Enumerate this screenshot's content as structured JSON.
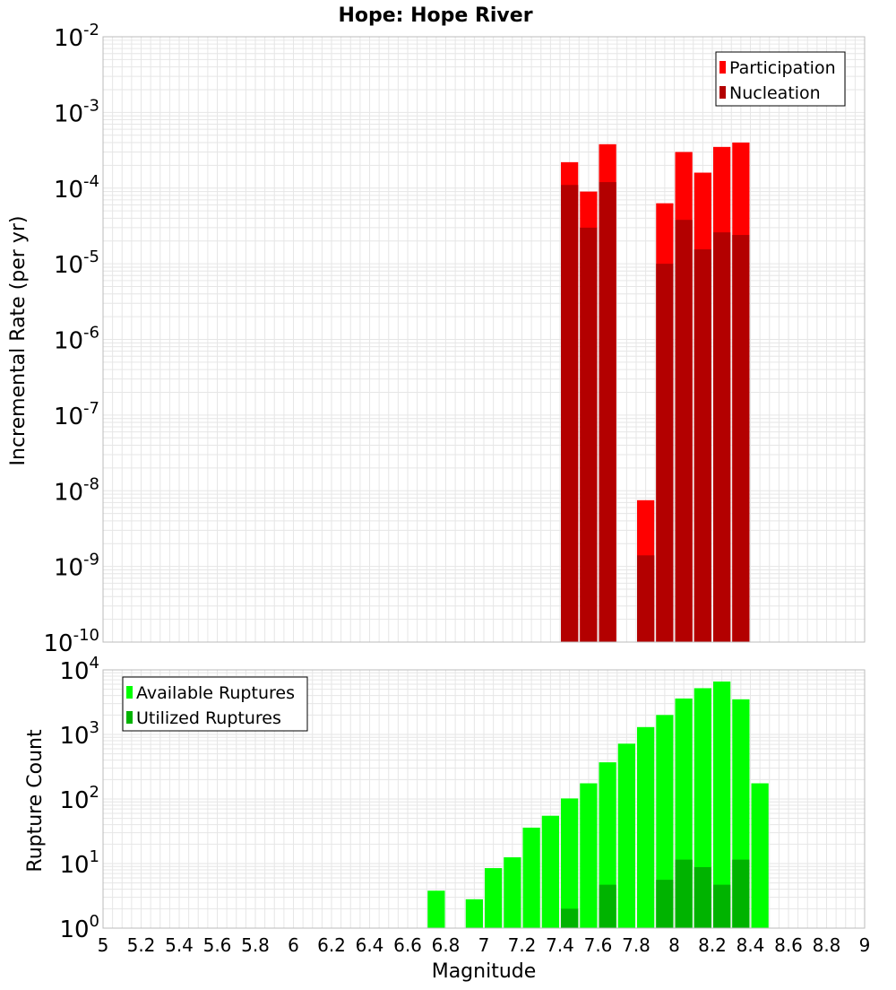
{
  "colors": {
    "participation": "#ff0000",
    "nucleation": "#b30000",
    "available": "#00ff00",
    "utilized": "#00b300",
    "grid": "#e6e6e6",
    "frame": "#bbbbbb",
    "background": "#ffffff"
  },
  "chart_data": [
    {
      "type": "bar",
      "title": "Hope: Hope River",
      "ylabel": "Incremental Rate (per yr)",
      "xlabel": "",
      "yscale": "log",
      "xlim": [
        5,
        9
      ],
      "ylim_exp": [
        -10,
        -2
      ],
      "grid": true,
      "legend_position": "top-right",
      "bar_width": 0.1,
      "series": [
        {
          "name": "Participation",
          "color": "#ff0000",
          "points": [
            {
              "x": 7.45,
              "y": 0.00022
            },
            {
              "x": 7.55,
              "y": 9e-05
            },
            {
              "x": 7.65,
              "y": 0.00038
            },
            {
              "x": 7.85,
              "y": 7.5e-09
            },
            {
              "x": 7.95,
              "y": 6.3e-05
            },
            {
              "x": 8.05,
              "y": 0.0003
            },
            {
              "x": 8.15,
              "y": 0.00016
            },
            {
              "x": 8.25,
              "y": 0.00035
            },
            {
              "x": 8.35,
              "y": 0.0004
            }
          ]
        },
        {
          "name": "Nucleation",
          "color": "#b30000",
          "points": [
            {
              "x": 7.45,
              "y": 0.00011
            },
            {
              "x": 7.55,
              "y": 3e-05
            },
            {
              "x": 7.65,
              "y": 0.00012
            },
            {
              "x": 7.85,
              "y": 1.4e-09
            },
            {
              "x": 7.95,
              "y": 1e-05
            },
            {
              "x": 8.05,
              "y": 3.8e-05
            },
            {
              "x": 8.15,
              "y": 1.55e-05
            },
            {
              "x": 8.25,
              "y": 2.6e-05
            },
            {
              "x": 8.35,
              "y": 2.4e-05
            }
          ]
        }
      ]
    },
    {
      "type": "bar",
      "title": "",
      "ylabel": "Rupture Count",
      "xlabel": "Magnitude",
      "yscale": "log",
      "xlim": [
        5,
        9
      ],
      "ylim_exp": [
        0,
        4
      ],
      "grid": true,
      "legend_position": "top-left",
      "bar_width": 0.1,
      "xticks": [
        "5",
        "5.2",
        "5.4",
        "5.6",
        "5.8",
        "6",
        "6.2",
        "6.4",
        "6.6",
        "6.8",
        "7",
        "7.2",
        "7.4",
        "7.6",
        "7.8",
        "8",
        "8.2",
        "8.4",
        "8.6",
        "8.8",
        "9"
      ],
      "series": [
        {
          "name": "Available Ruptures",
          "color": "#00ff00",
          "points": [
            {
              "x": 6.75,
              "y": 3.8
            },
            {
              "x": 6.85,
              "y": 1
            },
            {
              "x": 6.95,
              "y": 2.8
            },
            {
              "x": 7.05,
              "y": 8.5
            },
            {
              "x": 7.15,
              "y": 12.5
            },
            {
              "x": 7.25,
              "y": 36
            },
            {
              "x": 7.35,
              "y": 55
            },
            {
              "x": 7.45,
              "y": 102
            },
            {
              "x": 7.55,
              "y": 175
            },
            {
              "x": 7.65,
              "y": 370
            },
            {
              "x": 7.75,
              "y": 720
            },
            {
              "x": 7.85,
              "y": 1300
            },
            {
              "x": 7.95,
              "y": 2000
            },
            {
              "x": 8.05,
              "y": 3600
            },
            {
              "x": 8.15,
              "y": 5200
            },
            {
              "x": 8.25,
              "y": 6600
            },
            {
              "x": 8.35,
              "y": 3500
            },
            {
              "x": 8.45,
              "y": 175
            }
          ]
        },
        {
          "name": "Utilized Ruptures",
          "color": "#00b300",
          "points": [
            {
              "x": 7.45,
              "y": 2
            },
            {
              "x": 7.55,
              "y": 1
            },
            {
              "x": 7.65,
              "y": 4.7
            },
            {
              "x": 7.75,
              "y": 1
            },
            {
              "x": 7.85,
              "y": 1
            },
            {
              "x": 7.95,
              "y": 5.6
            },
            {
              "x": 8.05,
              "y": 11.5
            },
            {
              "x": 8.15,
              "y": 8.8
            },
            {
              "x": 8.25,
              "y": 4.7
            },
            {
              "x": 8.35,
              "y": 11.5
            }
          ]
        }
      ]
    }
  ]
}
